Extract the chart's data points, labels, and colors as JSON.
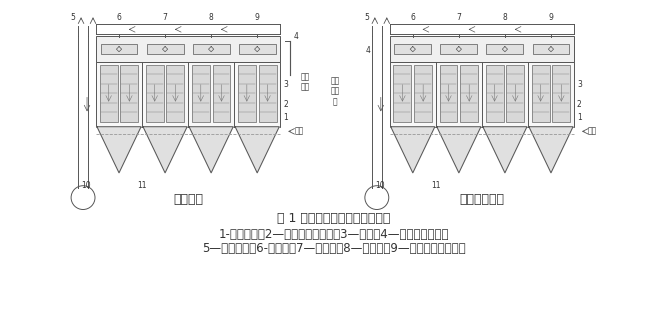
{
  "title": "图 1 负压式反吹袋式除尘器结构",
  "caption_line1": "1-尘气管道；2—清灰状态的袋室；3—滤袋；4—反吹风吸入口；",
  "caption_line2": "5—反吹风管；6-净气阀；7—净气管；8—反吹鄀；9—过滤状态的袋室；",
  "label_left": "大气反吹",
  "label_right": "气体循环反吹",
  "left_side_text": [
    "清灰",
    "气流"
  ],
  "right_side_text": [
    "通过",
    "循",
    "气"
  ],
  "dust_label": "尘气",
  "bg_color": "#ffffff",
  "lc": "#555555",
  "text_color": "#333333",
  "title_fontsize": 9,
  "caption_fontsize": 8.5,
  "label_fontsize": 9
}
